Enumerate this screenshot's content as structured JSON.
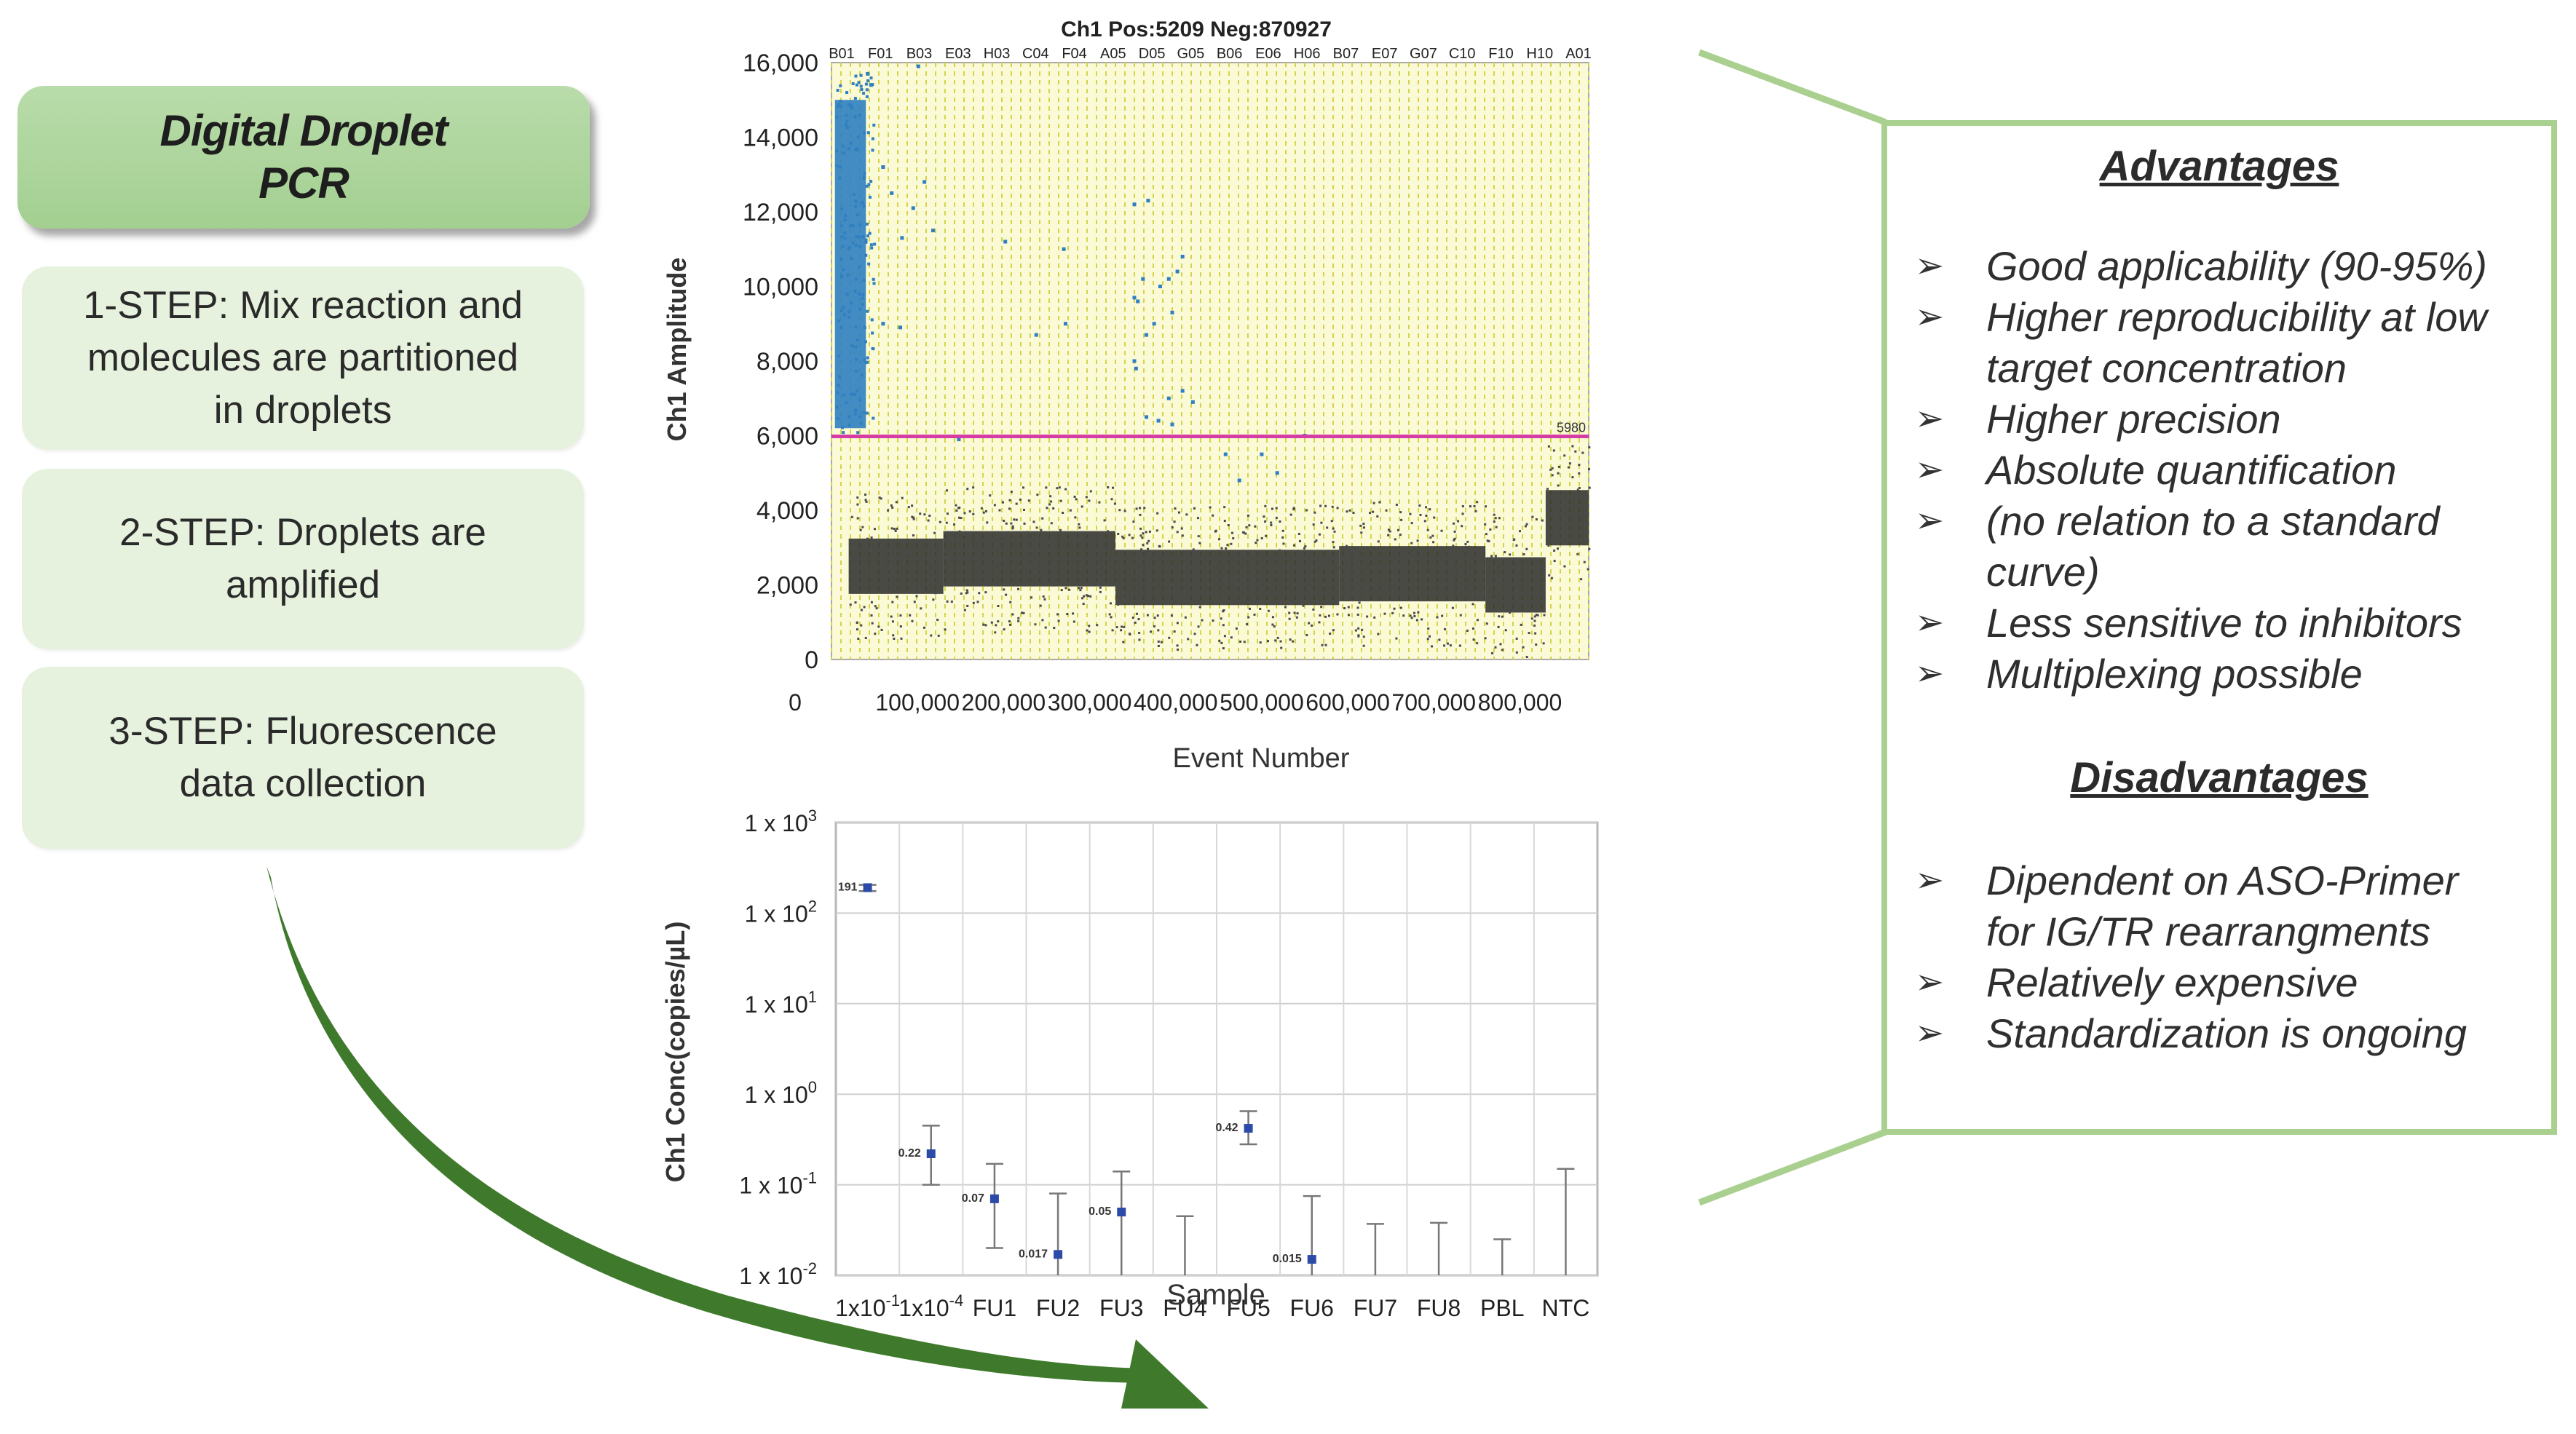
{
  "left": {
    "title": "Digital Droplet\nPCR",
    "steps": [
      "1-STEP: Mix reaction and\nmolecules are partitioned\nin droplets",
      "2-STEP: Droplets are\namplified",
      "3-STEP: Fluorescence\ndata collection"
    ]
  },
  "panel": {
    "advantages_title": "Advantages",
    "advantages": [
      "Good applicability (90-95%)",
      "Higher reproducibility at low\ntarget concentration",
      "Higher precision",
      "Absolute quantification",
      "(no relation to a standard\ncurve)",
      "Less sensitive to inhibitors",
      "Multiplexing possible"
    ],
    "disadvantages_title": "Disadvantages",
    "disadvantages": [
      "Dipendent on ASO-Primer\nfor IG/TR rearrangments",
      "Relatively expensive",
      "Standardization is ongoing"
    ],
    "bullet": "➢",
    "border_color": "#a9d08e"
  },
  "chart_data": [
    {
      "type": "scatter",
      "title": "Ch1 Pos:5209 Neg:870927",
      "xlabel": "Event Number",
      "ylabel": "Ch1 Amplitude",
      "xlim": [
        0,
        880000
      ],
      "ylim": [
        0,
        16000
      ],
      "xticks": [
        "0",
        "100,000",
        "200,000",
        "300,000",
        "400,000",
        "500,000",
        "600,000",
        "700,000",
        "800,000"
      ],
      "xtick_values": [
        0,
        100000,
        200000,
        300000,
        400000,
        500000,
        600000,
        700000,
        800000
      ],
      "yticks": [
        "0",
        "2,000",
        "4,000",
        "6,000",
        "8,000",
        "10,000",
        "12,000",
        "14,000",
        "16,000"
      ],
      "ytick_values": [
        0,
        2000,
        4000,
        6000,
        8000,
        10000,
        12000,
        14000,
        16000
      ],
      "well_labels": [
        "B01",
        "F01",
        "B03",
        "E03",
        "H03",
        "C04",
        "F04",
        "A05",
        "D05",
        "G05",
        "B06",
        "E06",
        "H06",
        "B07",
        "E07",
        "G07",
        "C10",
        "F10",
        "H10",
        "A01"
      ],
      "threshold": {
        "value": 5980,
        "label": "5980",
        "color": "#d63ca6"
      },
      "positive_color": "#2f7fc1",
      "negative_color": "#333333",
      "grid": "vertical dashed yellow",
      "positive_points": [
        [
          42000,
          15700
        ],
        [
          46000,
          15400
        ],
        [
          101000,
          15900
        ],
        [
          60000,
          13200
        ],
        [
          70000,
          12500
        ],
        [
          95000,
          12100
        ],
        [
          108000,
          12800
        ],
        [
          118000,
          11500
        ],
        [
          82000,
          11300
        ],
        [
          60000,
          9000
        ],
        [
          80000,
          8900
        ],
        [
          148000,
          5900
        ],
        [
          202000,
          11200
        ],
        [
          238000,
          8700
        ],
        [
          270000,
          11000
        ],
        [
          272000,
          9000
        ],
        [
          352000,
          12200
        ],
        [
          368000,
          12300
        ],
        [
          352000,
          9700
        ],
        [
          356000,
          9600
        ],
        [
          362000,
          10200
        ],
        [
          366000,
          8700
        ],
        [
          375000,
          9000
        ],
        [
          382000,
          10000
        ],
        [
          392000,
          10200
        ],
        [
          396000,
          9300
        ],
        [
          402000,
          10400
        ],
        [
          408000,
          10800
        ],
        [
          352000,
          8000
        ],
        [
          354000,
          7800
        ],
        [
          366000,
          6500
        ],
        [
          380000,
          6400
        ],
        [
          392000,
          7000
        ],
        [
          396000,
          6300
        ],
        [
          408000,
          7200
        ],
        [
          420000,
          6900
        ],
        [
          458000,
          5500
        ],
        [
          474000,
          4800
        ],
        [
          500000,
          5500
        ],
        [
          518000,
          5000
        ],
        [
          550000,
          6000
        ]
      ],
      "negative_band": [
        {
          "x": [
            20000,
            130000
          ],
          "y": 2500
        },
        {
          "x": [
            130000,
            330000
          ],
          "y": 2700
        },
        {
          "x": [
            330000,
            590000
          ],
          "y": 2200
        },
        {
          "x": [
            590000,
            760000
          ],
          "y": 2300
        },
        {
          "x": [
            760000,
            830000
          ],
          "y": 2000
        },
        {
          "x": [
            830000,
            880000
          ],
          "y": 3800
        }
      ]
    },
    {
      "type": "scatter",
      "ylog": true,
      "xlabel": "Sample",
      "ylabel": "Ch1 Conc(copies/µL)",
      "ylim": [
        0.01,
        1000
      ],
      "yticks": [
        {
          "base": "1 x 10",
          "exp": "3",
          "value": 1000
        },
        {
          "base": "1 x 10",
          "exp": "2",
          "value": 100
        },
        {
          "base": "1 x 10",
          "exp": "1",
          "value": 10
        },
        {
          "base": "1 x 10",
          "exp": "0",
          "value": 1
        },
        {
          "base": "1 x 10",
          "exp": "-1",
          "value": 0.1
        },
        {
          "base": "1 x 10",
          "exp": "-2",
          "value": 0.01
        }
      ],
      "categories": [
        {
          "base": "1x10",
          "exp": "-1"
        },
        {
          "base": "1x10",
          "exp": "-4"
        },
        {
          "base": "FU1",
          "exp": ""
        },
        {
          "base": "FU2",
          "exp": ""
        },
        {
          "base": "FU3",
          "exp": ""
        },
        {
          "base": "FU4",
          "exp": ""
        },
        {
          "base": "FU5",
          "exp": ""
        },
        {
          "base": "FU6",
          "exp": ""
        },
        {
          "base": "FU7",
          "exp": ""
        },
        {
          "base": "FU8",
          "exp": ""
        },
        {
          "base": "PBL",
          "exp": ""
        },
        {
          "base": "NTC",
          "exp": ""
        }
      ],
      "point_color": "#2c4aa8",
      "values": [
        191,
        0.22,
        0.07,
        0.017,
        0.05,
        null,
        0.42,
        0.015,
        null,
        null,
        null,
        null
      ],
      "data_labels": [
        "191",
        "0.22",
        "0.07",
        "0.017",
        "0.05",
        "",
        "0.42",
        "0.015",
        "",
        "",
        "",
        ""
      ],
      "error_low": [
        175,
        0.1,
        0.02,
        0.01,
        0.01,
        0.01,
        0.28,
        0.01,
        0.01,
        0.01,
        0.01,
        0.01
      ],
      "error_high": [
        205,
        0.45,
        0.17,
        0.08,
        0.14,
        0.045,
        0.65,
        0.075,
        0.037,
        0.038,
        0.025,
        0.15
      ]
    }
  ]
}
